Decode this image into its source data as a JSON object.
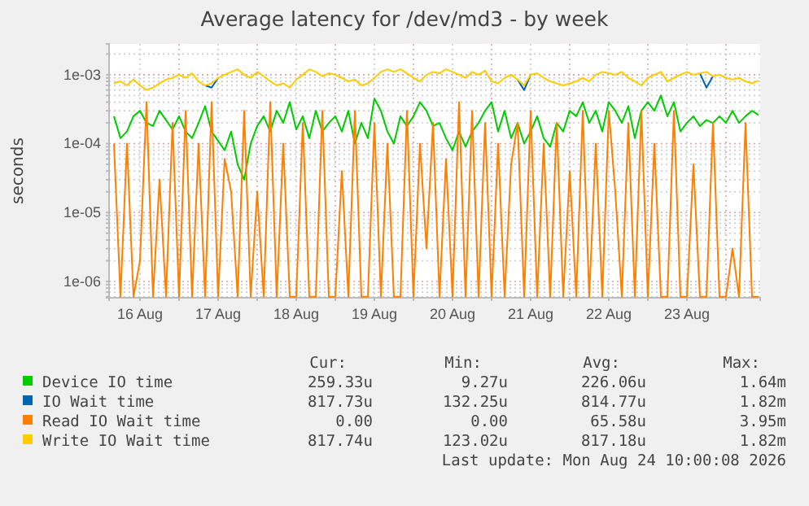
{
  "chart_data": {
    "type": "line",
    "title": "Average latency for /dev/md3 - by week",
    "ylabel": "seconds",
    "log": "y",
    "grid": true,
    "legend": "bottom",
    "marker": "none",
    "line_style": "solid",
    "ylim": [
      5.8e-07,
      0.0028
    ],
    "yticks": [
      {
        "value": 6e-07,
        "label": null
      },
      {
        "value": 7e-07,
        "label": null
      },
      {
        "value": 8e-07,
        "label": null
      },
      {
        "value": 9e-07,
        "label": null
      },
      {
        "value": 1e-06,
        "label": "1e-06"
      },
      {
        "value": 2e-06,
        "label": null
      },
      {
        "value": 3e-06,
        "label": null
      },
      {
        "value": 4e-06,
        "label": null
      },
      {
        "value": 5e-06,
        "label": null
      },
      {
        "value": 6e-06,
        "label": null
      },
      {
        "value": 7e-06,
        "label": null
      },
      {
        "value": 8e-06,
        "label": null
      },
      {
        "value": 9e-06,
        "label": null
      },
      {
        "value": 1e-05,
        "label": "1e-05"
      },
      {
        "value": 2e-05,
        "label": null
      },
      {
        "value": 3e-05,
        "label": null
      },
      {
        "value": 4e-05,
        "label": null
      },
      {
        "value": 5e-05,
        "label": null
      },
      {
        "value": 6e-05,
        "label": null
      },
      {
        "value": 7e-05,
        "label": null
      },
      {
        "value": 8e-05,
        "label": null
      },
      {
        "value": 9e-05,
        "label": null
      },
      {
        "value": 0.0001,
        "label": "1e-04"
      },
      {
        "value": 0.0002,
        "label": null
      },
      {
        "value": 0.0003,
        "label": null
      },
      {
        "value": 0.0004,
        "label": null
      },
      {
        "value": 0.0005,
        "label": null
      },
      {
        "value": 0.0006,
        "label": null
      },
      {
        "value": 0.0007,
        "label": null
      },
      {
        "value": 0.0008,
        "label": null
      },
      {
        "value": 0.0009,
        "label": null
      },
      {
        "value": 0.001,
        "label": "1e-03"
      },
      {
        "value": 0.002,
        "label": null
      }
    ],
    "xlim": [
      "2026-08-16T02:30",
      "2026-08-24T10:30"
    ],
    "xticks": [
      {
        "value": "2026-08-16T12:00",
        "label": "16 Aug"
      },
      {
        "value": "2026-08-17T00:00",
        "label": null
      },
      {
        "value": "2026-08-17T12:00",
        "label": "17 Aug"
      },
      {
        "value": "2026-08-18T00:00",
        "label": null
      },
      {
        "value": "2026-08-18T12:00",
        "label": "18 Aug"
      },
      {
        "value": "2026-08-19T00:00",
        "label": null
      },
      {
        "value": "2026-08-19T12:00",
        "label": "19 Aug"
      },
      {
        "value": "2026-08-20T00:00",
        "label": null
      },
      {
        "value": "2026-08-20T12:00",
        "label": "20 Aug"
      },
      {
        "value": "2026-08-21T00:00",
        "label": null
      },
      {
        "value": "2026-08-21T12:00",
        "label": "21 Aug"
      },
      {
        "value": "2026-08-22T00:00",
        "label": null
      },
      {
        "value": "2026-08-22T12:00",
        "label": "22 Aug"
      },
      {
        "value": "2026-08-23T00:00",
        "label": null
      },
      {
        "value": "2026-08-23T12:00",
        "label": "23 Aug"
      },
      {
        "value": "2026-08-24T00:00",
        "label": null
      }
    ],
    "x": [
      "2026-08-16T04:00",
      "2026-08-16T06:00",
      "2026-08-16T08:00",
      "2026-08-16T10:00",
      "2026-08-16T12:00",
      "2026-08-16T14:00",
      "2026-08-16T16:00",
      "2026-08-16T18:00",
      "2026-08-16T20:00",
      "2026-08-16T22:00",
      "2026-08-17T00:00",
      "2026-08-17T02:00",
      "2026-08-17T04:00",
      "2026-08-17T06:00",
      "2026-08-17T08:00",
      "2026-08-17T10:00",
      "2026-08-17T12:00",
      "2026-08-17T14:00",
      "2026-08-17T16:00",
      "2026-08-17T18:00",
      "2026-08-17T20:00",
      "2026-08-17T22:00",
      "2026-08-18T00:00",
      "2026-08-18T02:00",
      "2026-08-18T04:00",
      "2026-08-18T06:00",
      "2026-08-18T08:00",
      "2026-08-18T10:00",
      "2026-08-18T12:00",
      "2026-08-18T14:00",
      "2026-08-18T16:00",
      "2026-08-18T18:00",
      "2026-08-18T20:00",
      "2026-08-18T22:00",
      "2026-08-19T00:00",
      "2026-08-19T02:00",
      "2026-08-19T04:00",
      "2026-08-19T06:00",
      "2026-08-19T08:00",
      "2026-08-19T10:00",
      "2026-08-19T12:00",
      "2026-08-19T14:00",
      "2026-08-19T16:00",
      "2026-08-19T18:00",
      "2026-08-19T20:00",
      "2026-08-19T22:00",
      "2026-08-20T00:00",
      "2026-08-20T02:00",
      "2026-08-20T04:00",
      "2026-08-20T06:00",
      "2026-08-20T08:00",
      "2026-08-20T10:00",
      "2026-08-20T12:00",
      "2026-08-20T14:00",
      "2026-08-20T16:00",
      "2026-08-20T18:00",
      "2026-08-20T20:00",
      "2026-08-20T22:00",
      "2026-08-21T00:00",
      "2026-08-21T02:00",
      "2026-08-21T04:00",
      "2026-08-21T06:00",
      "2026-08-21T08:00",
      "2026-08-21T10:00",
      "2026-08-21T12:00",
      "2026-08-21T14:00",
      "2026-08-21T16:00",
      "2026-08-21T18:00",
      "2026-08-21T20:00",
      "2026-08-21T22:00",
      "2026-08-22T00:00",
      "2026-08-22T02:00",
      "2026-08-22T04:00",
      "2026-08-22T06:00",
      "2026-08-22T08:00",
      "2026-08-22T10:00",
      "2026-08-22T12:00",
      "2026-08-22T14:00",
      "2026-08-22T16:00",
      "2026-08-22T18:00",
      "2026-08-22T20:00",
      "2026-08-22T22:00",
      "2026-08-23T00:00",
      "2026-08-23T02:00",
      "2026-08-23T04:00",
      "2026-08-23T06:00",
      "2026-08-23T08:00",
      "2026-08-23T10:00",
      "2026-08-23T12:00",
      "2026-08-23T14:00",
      "2026-08-23T16:00",
      "2026-08-23T18:00",
      "2026-08-23T20:00",
      "2026-08-23T22:00",
      "2026-08-24T00:00",
      "2026-08-24T02:00",
      "2026-08-24T04:00",
      "2026-08-24T06:00",
      "2026-08-24T08:00",
      "2026-08-24T10:00"
    ],
    "series": [
      {
        "name": "Device IO time",
        "color": "#00cc00",
        "values": [
          0.00025,
          0.00012,
          0.00015,
          0.00025,
          0.0003,
          0.0002,
          0.00018,
          0.0003,
          0.00022,
          0.00016,
          0.00025,
          0.00015,
          0.00012,
          0.0002,
          0.00035,
          0.00015,
          0.00011,
          8e-05,
          0.00015,
          5e-05,
          3e-05,
          0.0001,
          0.00018,
          0.00025,
          0.00015,
          0.0003,
          0.0002,
          0.0004,
          0.00016,
          0.00025,
          0.00012,
          0.0003,
          0.00015,
          0.0002,
          0.00025,
          0.00015,
          0.0003,
          0.0001,
          0.0002,
          0.00012,
          0.00045,
          0.0003,
          0.00015,
          0.0001,
          0.00025,
          0.00018,
          0.00025,
          0.0004,
          0.0003,
          0.00018,
          0.0002,
          0.00012,
          8e-05,
          0.00015,
          9e-05,
          0.00015,
          0.0002,
          0.0003,
          0.0004,
          0.00015,
          0.0003,
          0.00012,
          0.0002,
          0.0001,
          0.00015,
          0.00025,
          0.00012,
          9e-05,
          0.0002,
          0.00015,
          0.0003,
          0.00025,
          0.0004,
          0.0002,
          0.0003,
          0.00015,
          0.0004,
          0.0003,
          0.0002,
          0.00035,
          0.00012,
          0.0003,
          0.0004,
          0.0003,
          0.0005,
          0.00025,
          0.0004,
          0.00015,
          0.0002,
          0.00025,
          0.00018,
          0.00022,
          0.0002,
          0.00025,
          0.0002,
          0.0003,
          0.0002,
          0.00025,
          0.0003,
          0.00026
        ]
      },
      {
        "name": "IO Wait time",
        "color": "#0066b3",
        "values": [
          null,
          null,
          null,
          null,
          null,
          null,
          null,
          null,
          null,
          null,
          null,
          null,
          null,
          null,
          0.0007,
          0.00065,
          0.0009,
          null,
          null,
          null,
          null,
          null,
          null,
          null,
          null,
          null,
          null,
          null,
          null,
          null,
          null,
          null,
          null,
          null,
          null,
          null,
          null,
          null,
          null,
          null,
          null,
          null,
          null,
          null,
          null,
          null,
          null,
          null,
          null,
          null,
          null,
          null,
          null,
          null,
          null,
          null,
          null,
          null,
          null,
          null,
          null,
          null,
          0.00085,
          0.0006,
          0.001,
          null,
          null,
          null,
          null,
          null,
          null,
          null,
          null,
          null,
          null,
          null,
          null,
          null,
          null,
          null,
          null,
          null,
          null,
          null,
          null,
          null,
          null,
          null,
          null,
          null,
          0.00105,
          0.00065,
          0.00095,
          null,
          null,
          null,
          null,
          null,
          null,
          null
        ]
      },
      {
        "name": "Read IO Wait time",
        "color": "#ff8000",
        "values": [
          0.0001,
          6e-07,
          0.0001,
          6e-07,
          2e-06,
          0.0004,
          6e-07,
          3e-05,
          6e-07,
          0.0002,
          6e-07,
          0.0003,
          6e-07,
          0.0001,
          6e-07,
          0.0004,
          6e-07,
          6e-05,
          2e-05,
          6e-07,
          0.0003,
          6e-07,
          2e-05,
          6e-07,
          0.0004,
          6e-07,
          0.0001,
          6e-07,
          6e-07,
          0.0002,
          6e-07,
          6e-07,
          0.0003,
          6e-07,
          6e-07,
          4e-05,
          6e-07,
          0.0003,
          6e-07,
          6e-07,
          0.0002,
          6e-07,
          0.0001,
          6e-07,
          6e-07,
          0.0003,
          6e-07,
          0.0001,
          3e-06,
          0.0002,
          6e-07,
          6e-05,
          6e-07,
          0.0004,
          6e-07,
          0.0003,
          6e-07,
          0.0002,
          6e-07,
          0.0001,
          6e-07,
          5e-05,
          0.0002,
          6e-07,
          0.0003,
          6e-07,
          0.0001,
          6e-07,
          0.0002,
          6e-07,
          4e-05,
          6e-07,
          0.0003,
          6e-07,
          0.0001,
          6e-07,
          0.0003,
          2e-05,
          6e-07,
          0.0002,
          6e-07,
          0.0003,
          6e-07,
          0.0001,
          6e-07,
          6e-07,
          0.0003,
          6e-07,
          6e-07,
          5e-05,
          6e-07,
          6e-07,
          0.0002,
          6e-07,
          6e-07,
          3e-06,
          6e-07,
          0.0002,
          6e-07,
          6e-07
        ]
      },
      {
        "name": "Write IO Wait time",
        "color": "#ffcc00",
        "values": [
          0.00075,
          0.0008,
          0.0007,
          0.00085,
          0.0007,
          0.0006,
          0.00065,
          0.00075,
          0.00085,
          0.0009,
          0.001,
          0.0009,
          0.00105,
          0.0008,
          0.0007,
          0.00075,
          0.0009,
          0.001,
          0.0011,
          0.0012,
          0.001,
          0.0009,
          0.0011,
          0.00095,
          0.0008,
          0.0007,
          0.00075,
          0.00065,
          0.00085,
          0.001,
          0.0012,
          0.0011,
          0.00095,
          0.00105,
          0.001,
          0.0009,
          0.0008,
          0.00085,
          0.0007,
          0.00075,
          0.0009,
          0.0011,
          0.0012,
          0.0011,
          0.0012,
          0.00105,
          0.0009,
          0.0008,
          0.001,
          0.0011,
          0.00105,
          0.0012,
          0.0011,
          0.001,
          0.0009,
          0.0011,
          0.001,
          0.00115,
          0.0008,
          0.00075,
          0.0009,
          0.001,
          0.00085,
          0.0007,
          0.001,
          0.00105,
          0.0009,
          0.0008,
          0.00075,
          0.0007,
          0.00075,
          0.0008,
          0.0009,
          0.0008,
          0.001,
          0.0011,
          0.00105,
          0.001,
          0.0011,
          0.0009,
          0.0008,
          0.0007,
          0.0009,
          0.001,
          0.0011,
          0.0008,
          0.0009,
          0.001,
          0.0011,
          0.001,
          0.00105,
          0.0011,
          0.00095,
          0.001,
          0.0009,
          0.00085,
          0.0009,
          0.0008,
          0.00075,
          0.00082
        ]
      }
    ],
    "annotations": [
      "Cur:",
      "Min:",
      "Avg:",
      "Max:",
      "259.33u",
      "9.27u",
      "226.06u",
      "1.64m",
      "817.73u",
      "132.25u",
      "814.77u",
      "1.82m",
      "0.00",
      "0.00",
      "65.58u",
      "3.95m",
      "817.74u",
      "123.02u",
      "817.18u",
      "1.82m",
      "Last update: Mon Aug 24 10:00:08 2026"
    ]
  }
}
